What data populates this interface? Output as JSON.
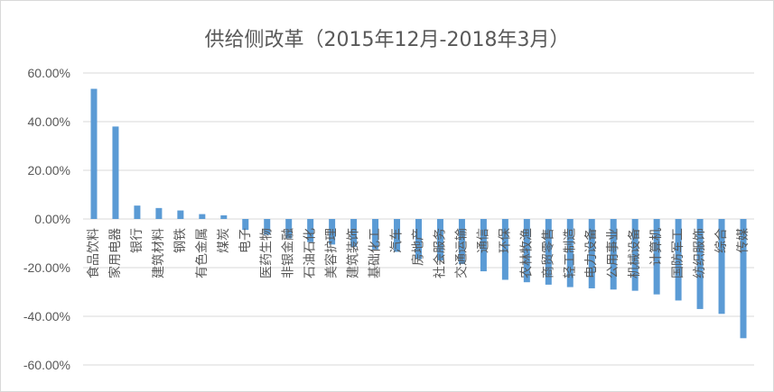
{
  "chart_data": {
    "type": "bar",
    "title": "供给侧改革（2015年12月-2018年3月）",
    "xlabel": "",
    "ylabel": "",
    "ylim": [
      -60,
      60
    ],
    "yticks": [
      60,
      40,
      20,
      0,
      -20,
      -40,
      -60
    ],
    "ytick_labels": [
      "60.00%",
      "40.00%",
      "20.00%",
      "0.00%",
      "-20.00%",
      "-40.00%",
      "-60.00%"
    ],
    "grid": true,
    "legend": "none",
    "bar_color": "#5b9bd5",
    "categories": [
      "食品饮料",
      "家用电器",
      "银行",
      "建筑材料",
      "钢铁",
      "有色金属",
      "煤炭",
      "电子",
      "医药生物",
      "非银金融",
      "石油石化",
      "美容护理",
      "建筑装饰",
      "基础化工",
      "汽车",
      "房地产",
      "社会服务",
      "交通运输",
      "通信",
      "环保",
      "农林牧渔",
      "商贸零售",
      "轻工制造",
      "电力设备",
      "公用事业",
      "机械设备",
      "计算机",
      "国防军工",
      "纺织服饰",
      "综合",
      "传媒"
    ],
    "values": [
      53.5,
      38.0,
      5.5,
      4.5,
      3.5,
      2.0,
      1.5,
      -4.5,
      -6.5,
      -8.0,
      -9.5,
      -10.5,
      -11.5,
      -12.5,
      -13.5,
      -16.5,
      -17.0,
      -18.5,
      -21.5,
      -25.0,
      -26.0,
      -27.0,
      -28.0,
      -28.5,
      -29.0,
      -29.5,
      -31.0,
      -33.5,
      -37.0,
      -39.0,
      -49.0
    ]
  }
}
